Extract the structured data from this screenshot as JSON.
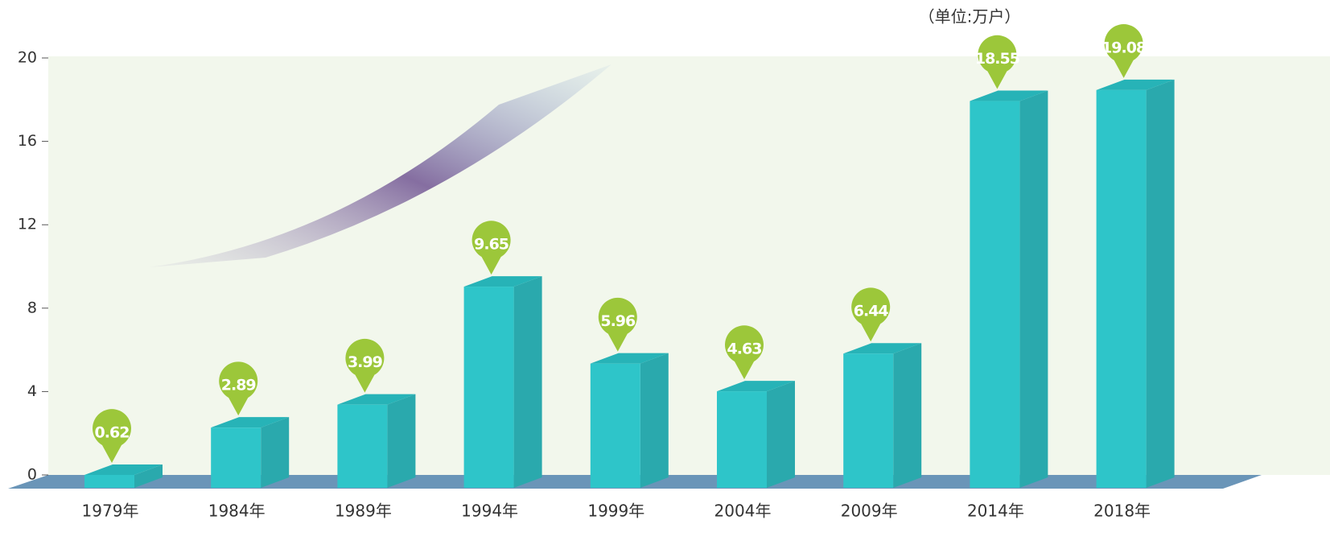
{
  "chart_data": {
    "type": "bar3d",
    "unit": "（单位:万户）",
    "categories": [
      "1979年",
      "1984年",
      "1989年",
      "1994年",
      "1999年",
      "2004年",
      "2009年",
      "2014年",
      "2018年"
    ],
    "values": [
      0.62,
      2.89,
      3.99,
      9.65,
      5.96,
      4.63,
      6.44,
      18.55,
      19.08
    ],
    "color": "#2ec5c9",
    "label_color": "#9cc73a",
    "ylim": [
      0,
      20
    ],
    "yticks": [
      0,
      4,
      8,
      12,
      16,
      20
    ]
  }
}
